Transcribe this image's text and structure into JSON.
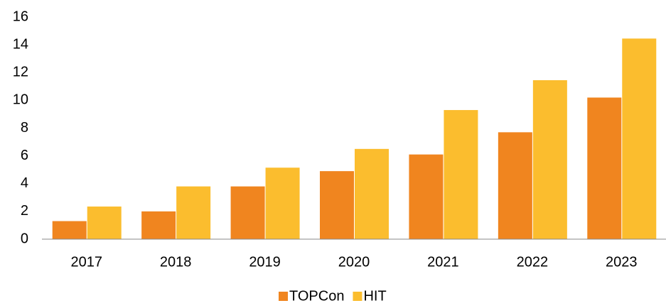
{
  "chart_data": {
    "type": "bar",
    "categories": [
      "2017",
      "2018",
      "2019",
      "2020",
      "2021",
      "2022",
      "2023"
    ],
    "series": [
      {
        "name": "TOPCon",
        "color": "#f0851f",
        "values": [
          1.3,
          2.0,
          3.8,
          4.9,
          6.1,
          7.7,
          10.2
        ]
      },
      {
        "name": "HIT",
        "color": "#fbbd2e",
        "values": [
          2.35,
          3.8,
          5.15,
          6.5,
          9.3,
          11.45,
          14.45
        ]
      }
    ],
    "ylim": [
      0,
      16
    ],
    "yticks": [
      0,
      2,
      4,
      6,
      8,
      10,
      12,
      14,
      16
    ],
    "grid": false,
    "legend": "bottom"
  }
}
